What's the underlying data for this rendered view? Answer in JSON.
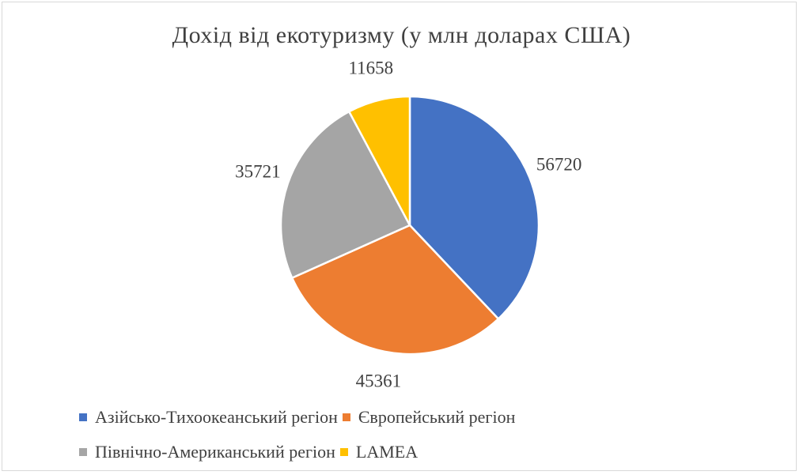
{
  "chart_data": {
    "type": "pie",
    "title": "Дохід від екотуризму (у млн доларах США)",
    "categories": [
      "Азійсько-Тихоокеанський регіон",
      "Європейський регіон",
      "Північно-Американський регіон",
      "LAMEA"
    ],
    "values": [
      56720,
      45361,
      35721,
      11658
    ],
    "data_labels": [
      "56720",
      "45361",
      "35721",
      "11658"
    ],
    "colors": [
      "#4472C4",
      "#ED7D31",
      "#A5A5A5",
      "#FFC000"
    ],
    "start_angle_deg": 0,
    "direction": "clockwise",
    "legend_position": "bottom"
  }
}
